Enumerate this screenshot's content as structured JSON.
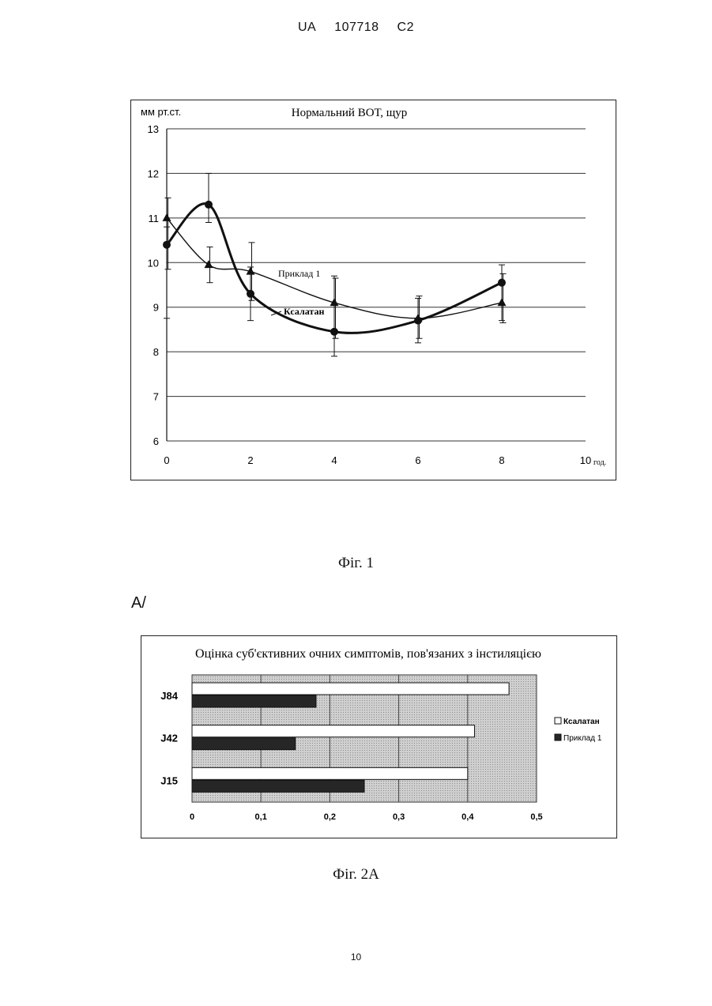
{
  "header": {
    "office": "UA",
    "number": "107718",
    "kind": "C2"
  },
  "page_number": "10",
  "figure1": {
    "caption": "Фіг. 1"
  },
  "figure2": {
    "panel_label": "A/",
    "caption": "Фіг. 2A"
  },
  "chart_data": [
    {
      "type": "line",
      "title": "Нормальний ВОТ, щур",
      "ylabel": "мм рт.ст.",
      "xlabel": "год.",
      "xlim": [
        0,
        10
      ],
      "ylim": [
        6,
        13
      ],
      "x_ticks": [
        0,
        2,
        4,
        6,
        8,
        10
      ],
      "y_ticks": [
        6,
        7,
        8,
        9,
        10,
        11,
        12,
        13
      ],
      "grid": true,
      "series": [
        {
          "name": "Ксалатан",
          "marker": "circle",
          "x": [
            0,
            1,
            2,
            4,
            6,
            8
          ],
          "y": [
            10.4,
            11.3,
            9.3,
            8.45,
            8.7,
            9.55
          ],
          "err_low": [
            8.75,
            10.9,
            8.7,
            7.9,
            8.2,
            8.7
          ],
          "err_high": [
            10.8,
            12.0,
            9.9,
            9.7,
            9.2,
            9.95
          ]
        },
        {
          "name": "Приклад 1",
          "marker": "triangle",
          "x": [
            0,
            1,
            2,
            4,
            6,
            8
          ],
          "y": [
            11.0,
            9.95,
            9.8,
            9.1,
            8.75,
            9.1
          ],
          "err_low": [
            9.85,
            9.55,
            9.15,
            8.3,
            8.3,
            8.65
          ],
          "err_high": [
            11.45,
            10.35,
            10.45,
            9.65,
            9.25,
            9.75
          ]
        }
      ],
      "annotations": [
        "Приклад 1",
        "Ксалатан"
      ]
    },
    {
      "type": "bar",
      "orientation": "horizontal",
      "title": "Оцінка суб'єктивних очних симптомів, пов'язаних з інстиляцією",
      "categories": [
        "J84",
        "J42",
        "J15"
      ],
      "xlim": [
        0,
        0.5
      ],
      "x_ticks": [
        "0",
        "0,1",
        "0,2",
        "0,3",
        "0,4",
        "0,5"
      ],
      "legend_position": "right",
      "series": [
        {
          "name": "Ксалатан",
          "color": "#ffffff",
          "values": [
            0.46,
            0.41,
            0.4
          ]
        },
        {
          "name": "Приклад 1",
          "color": "#262626",
          "values": [
            0.18,
            0.15,
            0.25
          ]
        }
      ]
    }
  ]
}
